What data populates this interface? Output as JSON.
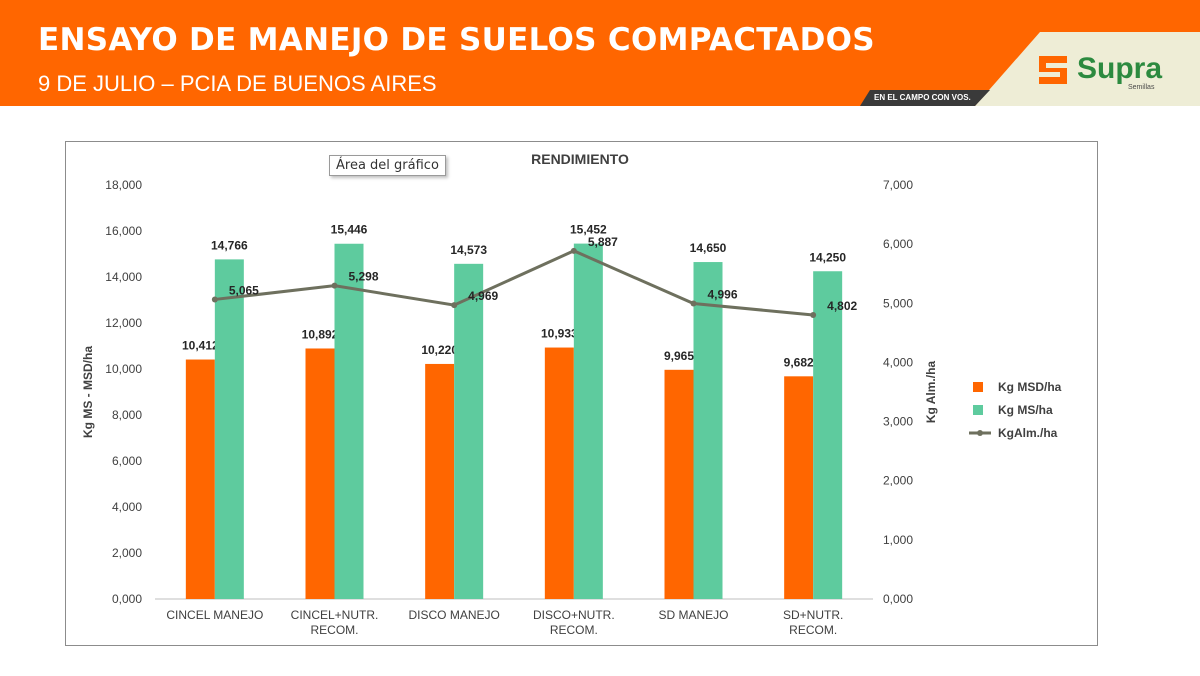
{
  "header": {
    "title": "ENSAYO DE MANEJO DE SUELOS COMPACTADOS",
    "subtitle": "9 DE JULIO – PCIA DE BUENOS AIRES",
    "tagline": "EN EL CAMPO CON VOS.",
    "brand": "Supra",
    "brand_sub": "Semillas",
    "colors": {
      "orange": "#ff6600",
      "cream": "#eeedd6",
      "dark_band": "#3a3a3a",
      "brand_green": "#2c8a3f"
    }
  },
  "tooltip": {
    "text": "Área del gráfico"
  },
  "chart_data": {
    "type": "bar",
    "title": "RENDIMIENTO",
    "categories": [
      [
        "CINCEL MANEJO"
      ],
      [
        "CINCEL+NUTR.",
        "RECOM."
      ],
      [
        "DISCO MANEJO"
      ],
      [
        "DISCO+NUTR.",
        "RECOM."
      ],
      [
        "SD MANEJO"
      ],
      [
        "SD+NUTR.",
        "RECOM."
      ]
    ],
    "ylabel": "Kg MS - MSD/ha",
    "y2label": "Kg Alm./ha",
    "ylim": [
      0,
      18000
    ],
    "y2lim": [
      0,
      7000
    ],
    "yticks": [
      "0,000",
      "2,000",
      "4,000",
      "6,000",
      "8,000",
      "10,000",
      "12,000",
      "14,000",
      "16,000",
      "18,000"
    ],
    "y2ticks": [
      "0,000",
      "1,000",
      "2,000",
      "3,000",
      "4,000",
      "5,000",
      "6,000",
      "7,000"
    ],
    "grid": false,
    "legend_position": "right",
    "series": [
      {
        "name": "Kg MSD/ha",
        "kind": "bar",
        "axis": "left",
        "color": "#ff6600",
        "values": [
          10412,
          10892,
          10220,
          10933,
          9965,
          9682
        ],
        "labels": [
          "10,412",
          "10,892",
          "10,220",
          "10,933",
          "9,965",
          "9,682"
        ]
      },
      {
        "name": "Kg MS/ha",
        "kind": "bar",
        "axis": "left",
        "color": "#5ecb9e",
        "values": [
          14766,
          15446,
          14573,
          15452,
          14650,
          14250
        ],
        "labels": [
          "14,766",
          "15,446",
          "14,573",
          "15,452",
          "14,650",
          "14,250"
        ]
      },
      {
        "name": "KgAlm./ha",
        "kind": "line",
        "axis": "right",
        "color": "#6e705e",
        "values": [
          5065,
          5298,
          4969,
          5887,
          4996,
          4802
        ],
        "labels": [
          "5,065",
          "5,298",
          "4,969",
          "5,887",
          "4,996",
          "4,802"
        ]
      }
    ]
  }
}
